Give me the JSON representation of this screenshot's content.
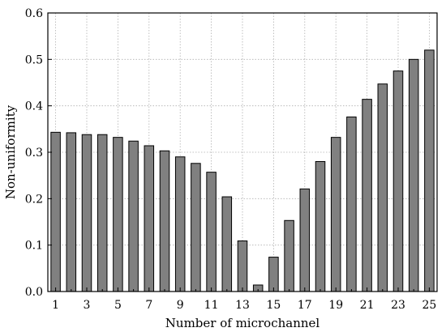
{
  "chart_data": {
    "type": "bar",
    "title": "",
    "xlabel": "Number of microchannel",
    "ylabel": "Non-uniformity",
    "categories": [
      "1",
      "2",
      "3",
      "4",
      "5",
      "6",
      "7",
      "8",
      "9",
      "10",
      "11",
      "12",
      "13",
      "14",
      "15",
      "16",
      "17",
      "18",
      "19",
      "20",
      "21",
      "22",
      "23",
      "24",
      "25"
    ],
    "x_tick_labels": [
      "1",
      "3",
      "5",
      "7",
      "9",
      "11",
      "13",
      "15",
      "17",
      "19",
      "21",
      "23",
      "25"
    ],
    "values": [
      0.343,
      0.342,
      0.338,
      0.338,
      0.332,
      0.324,
      0.314,
      0.303,
      0.29,
      0.276,
      0.257,
      0.204,
      0.109,
      0.014,
      0.074,
      0.153,
      0.221,
      0.28,
      0.332,
      0.376,
      0.414,
      0.447,
      0.475,
      0.5,
      0.52
    ],
    "ylim": [
      0,
      0.6
    ],
    "y_ticks": [
      "0.0",
      "0.1",
      "0.2",
      "0.3",
      "0.4",
      "0.5",
      "0.6"
    ],
    "grid": true,
    "bar_color": "#808080",
    "bar_edge_color": "#000000",
    "grid_color": "#b0b0b0"
  }
}
